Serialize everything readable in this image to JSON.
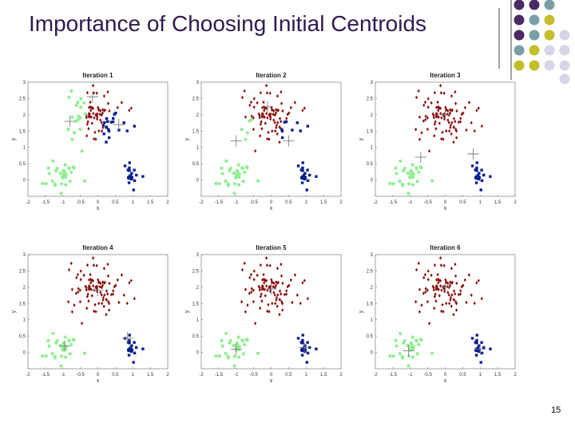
{
  "slide": {
    "title": "Importance of Choosing Initial Centroids",
    "page_number": "15"
  },
  "colors": {
    "title": "#2e1a4f",
    "deco_purple": "#4b2a63",
    "deco_teal": "#7a9ea6",
    "deco_olive": "#c3bf2a",
    "deco_lavender": "#d6d6e8",
    "cluster_green": "#90ee90",
    "cluster_red": "#8b1010",
    "cluster_blue": "#0a1f8f",
    "centroid_marker": "#7f7f7f"
  },
  "chart_data": [
    {
      "type": "scatter",
      "title": "Iteration 1",
      "xlabel": "x",
      "ylabel": "y",
      "xlim": [
        -2,
        2
      ],
      "ylim": [
        -0.5,
        3
      ],
      "xticks": [
        "-2",
        "-1.5",
        "-1",
        "-0.5",
        "0",
        "0.5",
        "1",
        "1.5",
        "2"
      ],
      "yticks": [
        "0",
        "0.5",
        "1",
        "1.5",
        "2",
        "2.5",
        "3"
      ],
      "centroids": [
        [
          -0.8,
          1.8
        ],
        [
          -0.15,
          2.55
        ],
        [
          0.6,
          1.7
        ]
      ],
      "assignment": "iter1"
    },
    {
      "type": "scatter",
      "title": "Iteration 2",
      "xlabel": "x",
      "ylabel": "y",
      "xlim": [
        -2,
        2
      ],
      "ylim": [
        -0.5,
        3
      ],
      "xticks": [
        "-2",
        "-1.5",
        "-1",
        "-0.5",
        "0",
        "0.5",
        "1",
        "1.5",
        "2"
      ],
      "yticks": [
        "0",
        "0.5",
        "1",
        "1.5",
        "2",
        "2.5",
        "3"
      ],
      "centroids": [
        [
          -1.0,
          1.2
        ],
        [
          -0.1,
          2.25
        ],
        [
          0.5,
          1.2
        ]
      ],
      "assignment": "iter2"
    },
    {
      "type": "scatter",
      "title": "Iteration 3",
      "xlabel": "x",
      "ylabel": "y",
      "xlim": [
        -2,
        2
      ],
      "ylim": [
        -0.5,
        3
      ],
      "xticks": [
        "-2",
        "-1.5",
        "-1",
        "-0.5",
        "0",
        "0.5",
        "1",
        "1.5",
        "2"
      ],
      "yticks": [
        "0",
        "0.5",
        "1",
        "1.5",
        "2",
        "2.5",
        "3"
      ],
      "centroids": [
        [
          -0.7,
          0.7
        ],
        [
          0.0,
          2.0
        ],
        [
          0.8,
          0.8
        ]
      ],
      "assignment": "iter3"
    },
    {
      "type": "scatter",
      "title": "Iteration 4",
      "xlabel": "x",
      "ylabel": "y",
      "xlim": [
        -2,
        2
      ],
      "ylim": [
        -0.5,
        3
      ],
      "xticks": [
        "-2",
        "-1.5",
        "-1",
        "-0.5",
        "0",
        "0.5",
        "1",
        "1.5",
        "2"
      ],
      "yticks": [
        "0",
        "0.5",
        "1",
        "1.5",
        "2",
        "2.5",
        "3"
      ],
      "centroids": [
        [
          -0.95,
          0.2
        ],
        [
          0.0,
          1.9
        ],
        [
          0.85,
          0.45
        ]
      ],
      "assignment": "final"
    },
    {
      "type": "scatter",
      "title": "Iteration 5",
      "xlabel": "x",
      "ylabel": "y",
      "xlim": [
        -2,
        2
      ],
      "ylim": [
        -0.5,
        3
      ],
      "xticks": [
        "-2",
        "-1.5",
        "-1",
        "-0.5",
        "0",
        "0.5",
        "1",
        "1.5",
        "2"
      ],
      "yticks": [
        "0",
        "0.5",
        "1",
        "1.5",
        "2",
        "2.5",
        "3"
      ],
      "centroids": [
        [
          -1.0,
          0.1
        ],
        [
          0.0,
          1.95
        ],
        [
          0.95,
          0.15
        ]
      ],
      "assignment": "final"
    },
    {
      "type": "scatter",
      "title": "Iteration 6",
      "xlabel": "x",
      "ylabel": "y",
      "xlim": [
        -2,
        2
      ],
      "ylim": [
        -0.5,
        3
      ],
      "xticks": [
        "-2",
        "-1.5",
        "-1",
        "-0.5",
        "0",
        "0.5",
        "1",
        "1.5",
        "2"
      ],
      "yticks": [
        "0",
        "0.5",
        "1",
        "1.5",
        "2",
        "2.5",
        "3"
      ],
      "centroids": [
        [
          -1.05,
          0.05
        ],
        [
          0.0,
          2.0
        ],
        [
          1.0,
          0.1
        ]
      ],
      "assignment": "final"
    }
  ]
}
